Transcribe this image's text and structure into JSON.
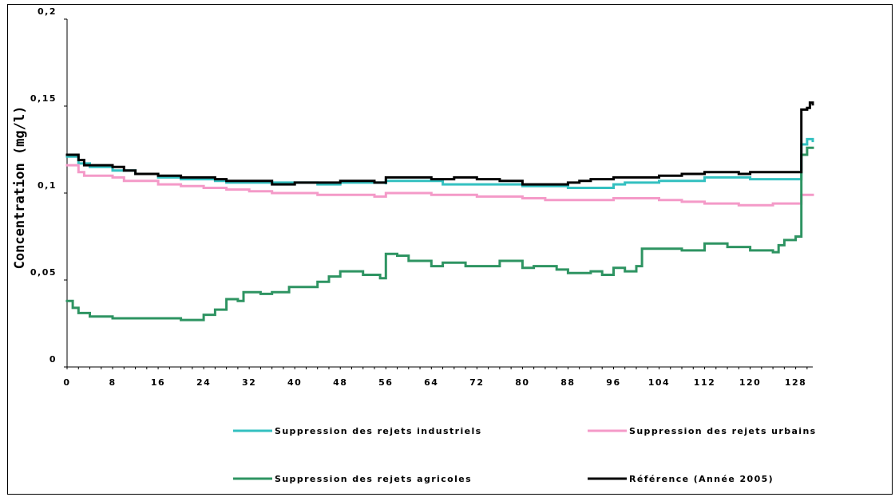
{
  "chart_data": {
    "type": "line",
    "title": "",
    "xlabel": "",
    "ylabel": "Concentration (mg/l)",
    "xlim": [
      0,
      131
    ],
    "ylim": [
      0,
      0.2
    ],
    "x_ticks": [
      0,
      8,
      16,
      24,
      32,
      40,
      48,
      56,
      64,
      72,
      80,
      88,
      96,
      104,
      112,
      120,
      128
    ],
    "x_tick_labels": [
      "0",
      "8",
      "16",
      "24",
      "32",
      "40",
      "48",
      "56",
      "64",
      "72",
      "80",
      "88",
      "96",
      "104",
      "112",
      "120",
      "128"
    ],
    "y_ticks": [
      0,
      0.05,
      0.1,
      0.15,
      0.2
    ],
    "y_tick_labels": [
      "0",
      "0,05",
      "0,1",
      "0,15",
      "0,2"
    ],
    "grid": false,
    "legend_position": "bottom",
    "series": [
      {
        "name": "Suppression des rejets industriels",
        "color": "#33c0c0",
        "points": [
          [
            0,
            0.121
          ],
          [
            2,
            0.117
          ],
          [
            4,
            0.115
          ],
          [
            8,
            0.113
          ],
          [
            12,
            0.111
          ],
          [
            16,
            0.109
          ],
          [
            20,
            0.108
          ],
          [
            24,
            0.108
          ],
          [
            26,
            0.107
          ],
          [
            28,
            0.106
          ],
          [
            36,
            0.106
          ],
          [
            44,
            0.105
          ],
          [
            48,
            0.106
          ],
          [
            56,
            0.105
          ],
          [
            56,
            0.107
          ],
          [
            64,
            0.107
          ],
          [
            66,
            0.105
          ],
          [
            72,
            0.105
          ],
          [
            80,
            0.104
          ],
          [
            88,
            0.103
          ],
          [
            96,
            0.105
          ],
          [
            98,
            0.106
          ],
          [
            104,
            0.107
          ],
          [
            112,
            0.109
          ],
          [
            120,
            0.108
          ],
          [
            128,
            0.108
          ],
          [
            128.5,
            0.108
          ],
          [
            129,
            0.128
          ],
          [
            130,
            0.131
          ],
          [
            131,
            0.13
          ]
        ]
      },
      {
        "name": "Suppression des rejets urbains",
        "color": "#f49ac8",
        "points": [
          [
            0,
            0.116
          ],
          [
            2,
            0.112
          ],
          [
            3,
            0.11
          ],
          [
            8,
            0.109
          ],
          [
            10,
            0.107
          ],
          [
            16,
            0.105
          ],
          [
            20,
            0.104
          ],
          [
            24,
            0.103
          ],
          [
            28,
            0.102
          ],
          [
            32,
            0.101
          ],
          [
            36,
            0.1
          ],
          [
            40,
            0.1
          ],
          [
            44,
            0.099
          ],
          [
            48,
            0.099
          ],
          [
            54,
            0.098
          ],
          [
            56,
            0.1
          ],
          [
            64,
            0.099
          ],
          [
            72,
            0.098
          ],
          [
            80,
            0.097
          ],
          [
            84,
            0.096
          ],
          [
            88,
            0.096
          ],
          [
            96,
            0.097
          ],
          [
            104,
            0.096
          ],
          [
            108,
            0.095
          ],
          [
            112,
            0.094
          ],
          [
            118,
            0.093
          ],
          [
            124,
            0.094
          ],
          [
            128,
            0.094
          ],
          [
            129,
            0.099
          ],
          [
            131,
            0.099
          ]
        ]
      },
      {
        "name": "Suppression des rejets agricoles",
        "color": "#2e9462",
        "points": [
          [
            0,
            0.038
          ],
          [
            1,
            0.034
          ],
          [
            2,
            0.031
          ],
          [
            4,
            0.029
          ],
          [
            8,
            0.028
          ],
          [
            12,
            0.028
          ],
          [
            18,
            0.028
          ],
          [
            20,
            0.027
          ],
          [
            22,
            0.027
          ],
          [
            24,
            0.03
          ],
          [
            26,
            0.033
          ],
          [
            28,
            0.039
          ],
          [
            30,
            0.038
          ],
          [
            31,
            0.043
          ],
          [
            34,
            0.042
          ],
          [
            36,
            0.043
          ],
          [
            38,
            0.043
          ],
          [
            39,
            0.046
          ],
          [
            42,
            0.046
          ],
          [
            44,
            0.049
          ],
          [
            46,
            0.052
          ],
          [
            48,
            0.055
          ],
          [
            52,
            0.053
          ],
          [
            55,
            0.051
          ],
          [
            56,
            0.065
          ],
          [
            58,
            0.064
          ],
          [
            60,
            0.061
          ],
          [
            64,
            0.058
          ],
          [
            66,
            0.06
          ],
          [
            70,
            0.058
          ],
          [
            74,
            0.058
          ],
          [
            76,
            0.061
          ],
          [
            80,
            0.057
          ],
          [
            82,
            0.058
          ],
          [
            86,
            0.056
          ],
          [
            88,
            0.054
          ],
          [
            92,
            0.055
          ],
          [
            94,
            0.053
          ],
          [
            96,
            0.057
          ],
          [
            98,
            0.055
          ],
          [
            100,
            0.058
          ],
          [
            101,
            0.068
          ],
          [
            104,
            0.068
          ],
          [
            108,
            0.067
          ],
          [
            110,
            0.067
          ],
          [
            112,
            0.071
          ],
          [
            116,
            0.069
          ],
          [
            120,
            0.067
          ],
          [
            124,
            0.066
          ],
          [
            125,
            0.07
          ],
          [
            126,
            0.073
          ],
          [
            128,
            0.075
          ],
          [
            128.5,
            0.075
          ],
          [
            129,
            0.122
          ],
          [
            130,
            0.126
          ],
          [
            131,
            0.126
          ]
        ]
      },
      {
        "name": "Référence (Année 2005)",
        "color": "#000000",
        "points": [
          [
            0,
            0.122
          ],
          [
            2,
            0.119
          ],
          [
            3,
            0.116
          ],
          [
            8,
            0.115
          ],
          [
            10,
            0.113
          ],
          [
            12,
            0.111
          ],
          [
            16,
            0.11
          ],
          [
            20,
            0.109
          ],
          [
            24,
            0.109
          ],
          [
            26,
            0.108
          ],
          [
            28,
            0.107
          ],
          [
            36,
            0.105
          ],
          [
            40,
            0.106
          ],
          [
            44,
            0.106
          ],
          [
            48,
            0.107
          ],
          [
            52,
            0.107
          ],
          [
            54,
            0.106
          ],
          [
            56,
            0.109
          ],
          [
            60,
            0.109
          ],
          [
            64,
            0.108
          ],
          [
            68,
            0.109
          ],
          [
            72,
            0.108
          ],
          [
            76,
            0.107
          ],
          [
            80,
            0.105
          ],
          [
            84,
            0.105
          ],
          [
            88,
            0.106
          ],
          [
            90,
            0.107
          ],
          [
            92,
            0.108
          ],
          [
            96,
            0.109
          ],
          [
            100,
            0.109
          ],
          [
            104,
            0.11
          ],
          [
            108,
            0.111
          ],
          [
            112,
            0.112
          ],
          [
            116,
            0.112
          ],
          [
            118,
            0.111
          ],
          [
            120,
            0.112
          ],
          [
            124,
            0.112
          ],
          [
            128,
            0.112
          ],
          [
            128.5,
            0.112
          ],
          [
            129,
            0.148
          ],
          [
            130,
            0.149
          ],
          [
            130.5,
            0.152
          ],
          [
            131,
            0.151
          ]
        ]
      }
    ]
  }
}
